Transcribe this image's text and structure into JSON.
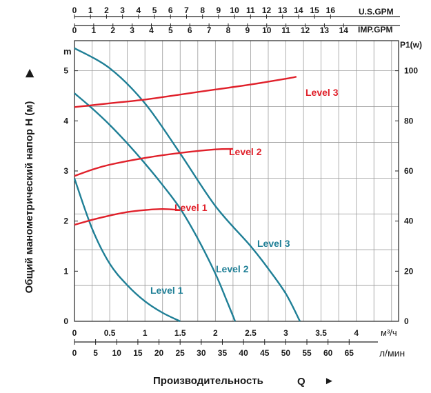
{
  "chart_data": {
    "type": "line",
    "ylabel": "Общий манометрический напор H (м)",
    "ylabel_arrow": "▶",
    "xlabel": "Производительность",
    "xlabel_symbol": "Q",
    "xlabel_arrow": "►",
    "grid": true,
    "colors": {
      "head": "#1f7f96",
      "power": "#e0202a",
      "grid": "#9a9a9a"
    },
    "axes": {
      "head": {
        "unit": "m",
        "range": [
          0,
          5.6
        ],
        "ticks": [
          0,
          1,
          2,
          3,
          4,
          5
        ]
      },
      "power": {
        "unit": "P1(w)",
        "range": [
          0,
          112
        ],
        "ticks": [
          0,
          20,
          40,
          60,
          80,
          100
        ]
      },
      "flow_m3h": {
        "unit": "м³/ч",
        "range": [
          0,
          4.6
        ],
        "ticks": [
          "0",
          "0.5",
          "1",
          "1.5",
          "2",
          "2.5",
          "3",
          "3.5",
          "4"
        ]
      },
      "flow_lmin": {
        "unit": "л/мин",
        "range": [
          0,
          76.7
        ],
        "ticks": [
          "0",
          "5",
          "10",
          "15",
          "20",
          "25",
          "30",
          "35",
          "40",
          "45",
          "50",
          "55",
          "60",
          "65"
        ]
      },
      "flow_usgpm": {
        "unit": "U.S.GPM",
        "range": [
          0,
          20.25
        ],
        "ticks": [
          "0",
          "1",
          "2",
          "3",
          "4",
          "5",
          "6",
          "7",
          "8",
          "9",
          "10",
          "11",
          "12",
          "13",
          "14",
          "15",
          "16"
        ]
      },
      "flow_impgpm": {
        "unit": "IMP.GPM",
        "range": [
          0,
          16.86
        ],
        "ticks": [
          "0",
          "1",
          "2",
          "3",
          "4",
          "5",
          "6",
          "7",
          "8",
          "9",
          "10",
          "11",
          "12",
          "13",
          "14"
        ]
      }
    },
    "head_series": [
      {
        "name": "Level 1",
        "points": [
          [
            0,
            2.85
          ],
          [
            0.25,
            1.85
          ],
          [
            0.5,
            1.15
          ],
          [
            0.75,
            0.72
          ],
          [
            1.0,
            0.4
          ],
          [
            1.25,
            0.17
          ],
          [
            1.5,
            0.0
          ]
        ]
      },
      {
        "name": "Level 2",
        "points": [
          [
            0,
            4.55
          ],
          [
            0.25,
            4.25
          ],
          [
            0.5,
            3.92
          ],
          [
            0.75,
            3.55
          ],
          [
            1.0,
            3.15
          ],
          [
            1.25,
            2.72
          ],
          [
            1.5,
            2.25
          ],
          [
            1.75,
            1.65
          ],
          [
            2.0,
            0.95
          ],
          [
            2.15,
            0.45
          ],
          [
            2.28,
            0.0
          ]
        ]
      },
      {
        "name": "Level 3",
        "points": [
          [
            0,
            5.45
          ],
          [
            0.5,
            5.05
          ],
          [
            1.0,
            4.35
          ],
          [
            1.5,
            3.35
          ],
          [
            2.0,
            2.3
          ],
          [
            2.5,
            1.5
          ],
          [
            2.75,
            1.05
          ],
          [
            3.0,
            0.55
          ],
          [
            3.2,
            0.0
          ]
        ]
      }
    ],
    "power_series": [
      {
        "name": "Level 1",
        "points": [
          [
            0,
            38.5
          ],
          [
            0.25,
            40.5
          ],
          [
            0.5,
            42.2
          ],
          [
            0.75,
            43.6
          ],
          [
            1.0,
            44.4
          ],
          [
            1.25,
            44.8
          ],
          [
            1.5,
            44.4
          ]
        ]
      },
      {
        "name": "Level 2",
        "points": [
          [
            0,
            58.0
          ],
          [
            0.25,
            60.5
          ],
          [
            0.5,
            62.5
          ],
          [
            1.0,
            65.2
          ],
          [
            1.5,
            67.2
          ],
          [
            2.0,
            68.6
          ],
          [
            2.25,
            68.8
          ]
        ]
      },
      {
        "name": "Level 3",
        "points": [
          [
            0,
            85.5
          ],
          [
            0.5,
            87.0
          ],
          [
            1.0,
            88.5
          ],
          [
            1.5,
            90.5
          ],
          [
            2.0,
            92.5
          ],
          [
            2.5,
            94.5
          ],
          [
            3.0,
            96.8
          ],
          [
            3.15,
            97.6
          ]
        ]
      }
    ]
  }
}
